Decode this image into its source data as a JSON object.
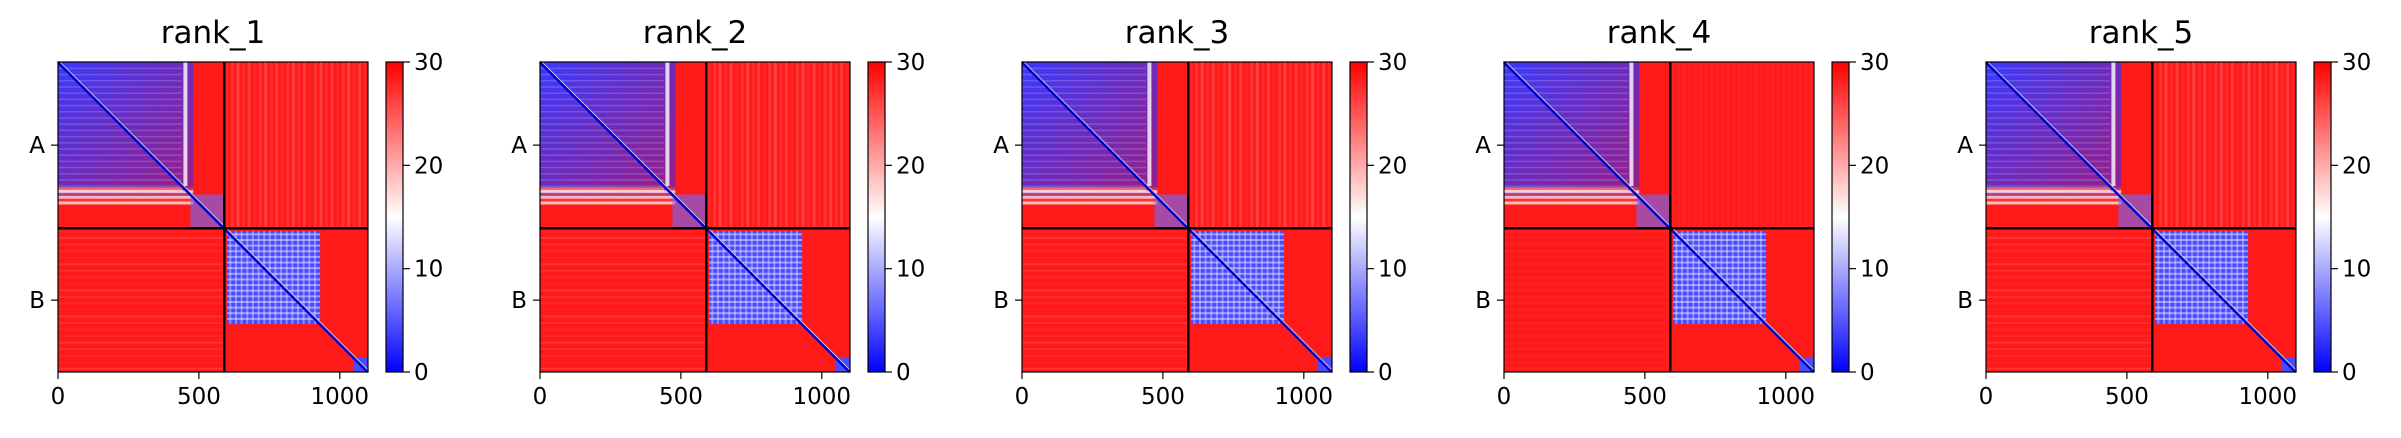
{
  "chart_data": [
    {
      "type": "heatmap",
      "title": "rank_1",
      "x_ticks": [
        "0",
        "500",
        "1000"
      ],
      "x_tick_values": [
        0,
        500,
        1000
      ],
      "y_tick_labels": [
        "A",
        "B"
      ],
      "xlim": [
        0,
        1100
      ],
      "ylim": [
        1100,
        0
      ],
      "chain_lengths": [
        590,
        510
      ],
      "grid": false,
      "colorbar": {
        "ticks": [
          "0",
          "10",
          "20",
          "30"
        ],
        "range": [
          0,
          30
        ],
        "colormap": "bwr"
      },
      "blocks": {
        "A_A": "low values (blue) across most of the block, rising toward ~30 (red) in the last ~110 residues and near the diagonal gap around residue 450",
        "A_B": "~30 (red) with vertical striping",
        "B_A": "~30 (red) with faint horizontal striping",
        "B_B": "low values (blue) for residues ~600–930, ~30 (red) elsewhere; small blue domain at residues ~1050–1100"
      }
    },
    {
      "type": "heatmap",
      "title": "rank_2",
      "x_ticks": [
        "0",
        "500",
        "1000"
      ],
      "x_tick_values": [
        0,
        500,
        1000
      ],
      "y_tick_labels": [
        "A",
        "B"
      ],
      "xlim": [
        0,
        1100
      ],
      "ylim": [
        1100,
        0
      ],
      "chain_lengths": [
        590,
        510
      ],
      "grid": false,
      "colorbar": {
        "ticks": [
          "0",
          "10",
          "20",
          "30"
        ],
        "range": [
          0,
          30
        ],
        "colormap": "bwr"
      },
      "blocks": {
        "A_A": "low values (blue) across most of the block, rising toward ~30 (red) in the last ~110 residues",
        "A_B": "~30 (red) with vertical striping",
        "B_A": "~30 (red) with faint horizontal striping",
        "B_B": "low values (blue) for residues ~600–930, ~30 (red) elsewhere; small blue domain at residues ~1050–1100"
      }
    },
    {
      "type": "heatmap",
      "title": "rank_3",
      "x_ticks": [
        "0",
        "500",
        "1000"
      ],
      "x_tick_values": [
        0,
        500,
        1000
      ],
      "y_tick_labels": [
        "A",
        "B"
      ],
      "xlim": [
        0,
        1100
      ],
      "ylim": [
        1100,
        0
      ],
      "chain_lengths": [
        590,
        510
      ],
      "grid": false,
      "colorbar": {
        "ticks": [
          "0",
          "10",
          "20",
          "30"
        ],
        "range": [
          0,
          30
        ],
        "colormap": "bwr"
      },
      "blocks": {
        "A_A": "low values (blue) across most of the block, rising toward ~30 (red) in the last ~110 residues",
        "A_B": "~30 (red) with vertical striping",
        "B_A": "~30 (red) with faint horizontal striping",
        "B_B": "low values (blue) for residues ~600–930, ~30 (red) elsewhere; small blue domain at residues ~1050–1100"
      }
    },
    {
      "type": "heatmap",
      "title": "rank_4",
      "x_ticks": [
        "0",
        "500",
        "1000"
      ],
      "x_tick_values": [
        0,
        500,
        1000
      ],
      "y_tick_labels": [
        "A",
        "B"
      ],
      "xlim": [
        0,
        1100
      ],
      "ylim": [
        1100,
        0
      ],
      "chain_lengths": [
        590,
        510
      ],
      "grid": false,
      "colorbar": {
        "ticks": [
          "0",
          "10",
          "20",
          "30"
        ],
        "range": [
          0,
          30
        ],
        "colormap": "bwr"
      },
      "blocks": {
        "A_A": "low values (blue) across most of the block, rising toward ~30 (red) in the last ~110 residues",
        "A_B": "~30 (red)",
        "B_A": "~30 (red)",
        "B_B": "low values (blue) for residues ~600–930, ~30 (red) elsewhere; small blue domain at residues ~1050–1100"
      }
    },
    {
      "type": "heatmap",
      "title": "rank_5",
      "x_ticks": [
        "0",
        "500",
        "1000"
      ],
      "x_tick_values": [
        0,
        500,
        1000
      ],
      "y_tick_labels": [
        "A",
        "B"
      ],
      "xlim": [
        0,
        1100
      ],
      "ylim": [
        1100,
        0
      ],
      "chain_lengths": [
        590,
        510
      ],
      "grid": false,
      "colorbar": {
        "ticks": [
          "0",
          "10",
          "20",
          "30"
        ],
        "range": [
          0,
          30
        ],
        "colormap": "bwr"
      },
      "blocks": {
        "A_A": "low values (blue) across most of the block, rising toward ~30 (red) in the last ~110 residues",
        "A_B": "~30 (red) with vertical striping",
        "B_A": "~30 (red) with faint horizontal striping",
        "B_B": "low values (blue) for residues ~600–930, ~30 (red) elsewhere; small blue domain at residues ~1050–1100"
      }
    }
  ]
}
